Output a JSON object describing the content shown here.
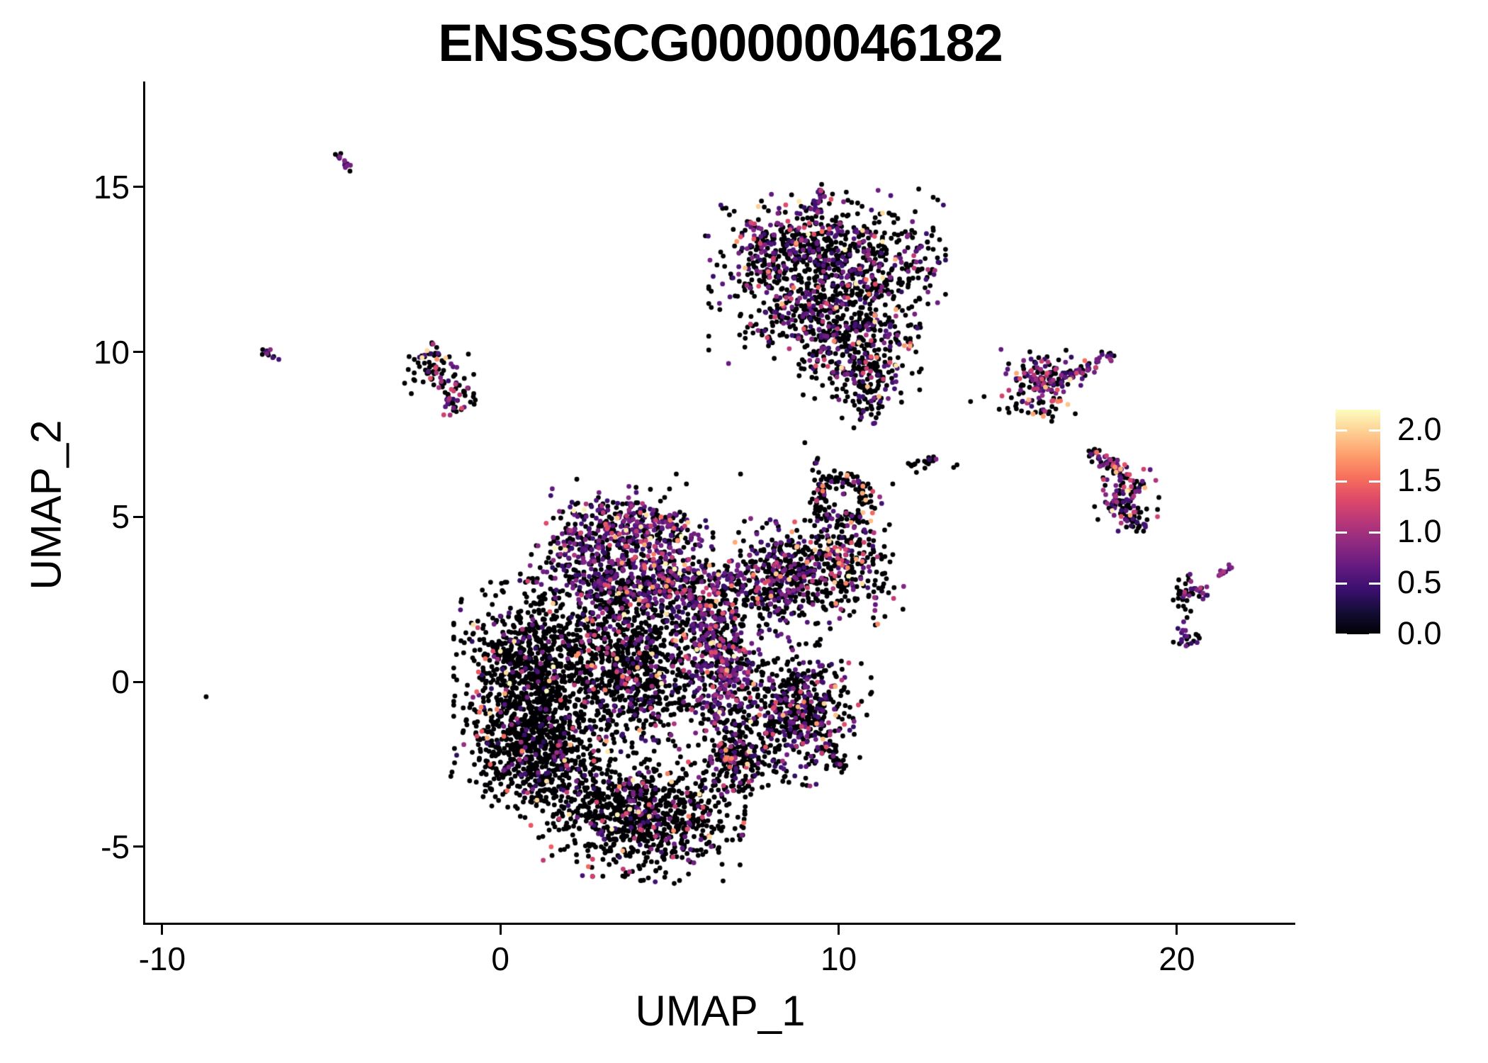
{
  "title": "ENSSSCG00000046182",
  "colors": {
    "background": "#ffffff",
    "text": "#000000",
    "axis": "#000000"
  },
  "chart_data": {
    "type": "scatter",
    "title": "ENSSSCG00000046182",
    "xlabel": "UMAP_1",
    "ylabel": "UMAP_2",
    "xlim": [
      -10.5,
      23.5
    ],
    "ylim": [
      -7.3,
      18.2
    ],
    "xticks": [
      -10,
      0,
      10,
      20
    ],
    "yticks": [
      -5,
      0,
      5,
      10,
      15
    ],
    "grid": false,
    "legend_position": "right",
    "point_radius_px": 3.4,
    "colorbar": {
      "title": "",
      "ticks": [
        0.0,
        0.5,
        1.0,
        1.5,
        2.0
      ],
      "tick_labels": [
        "0.0",
        "0.5",
        "1.0",
        "1.5",
        "2.0"
      ],
      "domain": [
        0,
        2.2
      ],
      "colormap": "magma",
      "stops": [
        "#000004",
        "#140e36",
        "#3b0f70",
        "#641a80",
        "#8c2981",
        "#b73779",
        "#de4968",
        "#f7705c",
        "#fe9f6d",
        "#fecf92",
        "#fcfdbf"
      ]
    },
    "value_bins": {
      "zero": 0,
      "low": [
        0.35,
        0.85
      ],
      "mid": [
        0.9,
        1.4
      ],
      "high": [
        1.5,
        2.2
      ]
    },
    "clusters": [
      {
        "name": "streak-topleft",
        "type": "streak",
        "x1": -4.8,
        "y1": 15.95,
        "x2": -4.42,
        "y2": 15.5,
        "jx": 0.06,
        "jy": 0.06,
        "n": 14,
        "p": [
          0.3,
          0.62,
          0.08,
          0
        ]
      },
      {
        "name": "pair-left",
        "type": "streak",
        "x1": -7.0,
        "y1": 10.05,
        "x2": -6.6,
        "y2": 9.75,
        "jx": 0.06,
        "jy": 0.06,
        "n": 11,
        "p": [
          0.55,
          0.2,
          0.25,
          0
        ]
      },
      {
        "name": "left-small-upper",
        "type": "gauss",
        "cx": -2.0,
        "cy": 9.5,
        "rx": 0.42,
        "ry": 0.42,
        "rot": -20,
        "n": 72,
        "p": [
          0.8,
          0.1,
          0.06,
          0.04
        ]
      },
      {
        "name": "left-small-lower",
        "type": "gauss",
        "cx": -1.3,
        "cy": 8.6,
        "rx": 0.28,
        "ry": 0.3,
        "rot": 0,
        "n": 42,
        "p": [
          0.55,
          0.3,
          0.13,
          0.02
        ]
      },
      {
        "name": "top-left-lobe",
        "type": "gauss",
        "cx": 8.1,
        "cy": 13.1,
        "rx": 0.85,
        "ry": 0.7,
        "rot": 0,
        "n": 270,
        "p": [
          0.62,
          0.3,
          0.06,
          0.02
        ]
      },
      {
        "name": "top-right-lobe",
        "type": "gauss",
        "cx": 10.4,
        "cy": 12.9,
        "rx": 1.15,
        "ry": 0.85,
        "rot": 0,
        "n": 470,
        "p": [
          0.72,
          0.21,
          0.05,
          0.02
        ]
      },
      {
        "name": "top-mid-band",
        "type": "gauss",
        "cx": 9.4,
        "cy": 11.3,
        "rx": 1.35,
        "ry": 0.75,
        "rot": 0,
        "n": 420,
        "p": [
          0.72,
          0.21,
          0.05,
          0.02
        ]
      },
      {
        "name": "top-lower",
        "type": "gauss",
        "cx": 10.6,
        "cy": 10.0,
        "rx": 0.8,
        "ry": 0.6,
        "rot": 10,
        "n": 250,
        "p": [
          0.73,
          0.2,
          0.05,
          0.02
        ]
      },
      {
        "name": "top-tail",
        "type": "gauss",
        "cx": 10.9,
        "cy": 8.9,
        "rx": 0.4,
        "ry": 0.5,
        "rot": 0,
        "n": 85,
        "p": [
          0.75,
          0.2,
          0.04,
          0.01
        ]
      },
      {
        "name": "top-spike",
        "type": "streak",
        "x1": 9.3,
        "y1": 14.2,
        "x2": 9.45,
        "y2": 14.85,
        "jx": 0.08,
        "jy": 0.1,
        "n": 26,
        "p": [
          0.5,
          0.4,
          0.08,
          0.02
        ]
      },
      {
        "name": "right-a-core",
        "type": "gauss",
        "cx": 16.0,
        "cy": 9.2,
        "rx": 0.5,
        "ry": 0.45,
        "rot": 0,
        "n": 135,
        "p": [
          0.52,
          0.3,
          0.13,
          0.05
        ]
      },
      {
        "name": "right-a-arm",
        "type": "streak",
        "x1": 16.4,
        "y1": 9.05,
        "x2": 18.05,
        "y2": 9.95,
        "jx": 0.12,
        "jy": 0.09,
        "n": 60,
        "p": [
          0.45,
          0.4,
          0.13,
          0.02
        ]
      },
      {
        "name": "right-a-sparse",
        "type": "gauss",
        "cx": 15.8,
        "cy": 8.3,
        "rx": 0.5,
        "ry": 0.3,
        "rot": -15,
        "n": 22,
        "p": [
          0.85,
          0.1,
          0,
          0.05
        ]
      },
      {
        "name": "right-b-top",
        "type": "streak",
        "x1": 17.55,
        "y1": 6.95,
        "x2": 18.35,
        "y2": 6.3,
        "jx": 0.12,
        "jy": 0.1,
        "n": 48,
        "p": [
          0.5,
          0.34,
          0.13,
          0.03
        ]
      },
      {
        "name": "right-b-core",
        "type": "gauss",
        "cx": 18.5,
        "cy": 5.55,
        "rx": 0.4,
        "ry": 0.5,
        "rot": 10,
        "n": 115,
        "p": [
          0.5,
          0.33,
          0.14,
          0.03
        ]
      },
      {
        "name": "right-b-tail",
        "type": "streak",
        "x1": 18.55,
        "y1": 5.0,
        "x2": 18.95,
        "y2": 4.62,
        "jx": 0.1,
        "jy": 0.08,
        "n": 14,
        "p": [
          0.55,
          0.3,
          0.15,
          0
        ]
      },
      {
        "name": "far-right-upper",
        "type": "gauss",
        "cx": 20.35,
        "cy": 2.72,
        "rx": 0.26,
        "ry": 0.24,
        "rot": 0,
        "n": 42,
        "p": [
          0.6,
          0.32,
          0.08,
          0
        ]
      },
      {
        "name": "far-right-lower",
        "type": "gauss",
        "cx": 20.28,
        "cy": 1.28,
        "rx": 0.16,
        "ry": 0.2,
        "rot": 0,
        "n": 20,
        "p": [
          0.6,
          0.4,
          0,
          0
        ]
      },
      {
        "name": "far-right-streak",
        "type": "streak",
        "x1": 21.25,
        "y1": 3.22,
        "x2": 21.65,
        "y2": 3.58,
        "jx": 0.05,
        "jy": 0.05,
        "n": 12,
        "p": [
          0.25,
          0.65,
          0.1,
          0
        ]
      },
      {
        "name": "mid-streak",
        "type": "streak",
        "x1": 12.1,
        "y1": 6.58,
        "x2": 12.8,
        "y2": 6.72,
        "jx": 0.07,
        "jy": 0.06,
        "n": 15,
        "p": [
          0.8,
          0.15,
          0.05,
          0
        ]
      },
      {
        "name": "crown",
        "type": "gauss",
        "cx": 3.9,
        "cy": 4.7,
        "rx": 1.05,
        "ry": 0.5,
        "rot": -8,
        "n": 330,
        "p": [
          0.45,
          0.42,
          0.1,
          0.03
        ]
      },
      {
        "name": "crown-left",
        "type": "gauss",
        "cx": 2.35,
        "cy": 4.1,
        "rx": 0.5,
        "ry": 0.42,
        "rot": 20,
        "n": 90,
        "p": [
          0.6,
          0.32,
          0.06,
          0.02
        ]
      },
      {
        "name": "upper-band",
        "type": "gauss",
        "cx": 4.3,
        "cy": 3.0,
        "rx": 1.55,
        "ry": 0.62,
        "rot": -4,
        "n": 700,
        "p": [
          0.56,
          0.33,
          0.08,
          0.03
        ]
      },
      {
        "name": "left-bulge",
        "type": "gauss",
        "cx": 0.9,
        "cy": 0.5,
        "rx": 0.95,
        "ry": 1.05,
        "rot": 0,
        "n": 800,
        "p": [
          0.9,
          0.06,
          0.02,
          0.02
        ]
      },
      {
        "name": "left-lower",
        "type": "gauss",
        "cx": 1.1,
        "cy": -2.1,
        "rx": 0.95,
        "ry": 0.85,
        "rot": -15,
        "n": 760,
        "p": [
          0.92,
          0.05,
          0.016,
          0.014
        ]
      },
      {
        "name": "center-core",
        "type": "gauss",
        "cx": 3.8,
        "cy": 0.4,
        "rx": 1.15,
        "ry": 1.15,
        "rot": 0,
        "n": 900,
        "p": [
          0.82,
          0.12,
          0.04,
          0.02
        ]
      },
      {
        "name": "center-column",
        "type": "gauss",
        "cx": 6.5,
        "cy": 0.7,
        "rx": 0.52,
        "ry": 1.25,
        "rot": 3,
        "n": 500,
        "p": [
          0.5,
          0.38,
          0.09,
          0.03
        ]
      },
      {
        "name": "right-arm",
        "type": "gauss",
        "cx": 8.4,
        "cy": 3.2,
        "rx": 0.72,
        "ry": 0.75,
        "rot": -20,
        "n": 440,
        "p": [
          0.68,
          0.25,
          0.05,
          0.02
        ]
      },
      {
        "name": "arm-loop",
        "type": "ring",
        "cx": 10.15,
        "cy": 5.5,
        "r0": 0.5,
        "r1": 0.95,
        "n": 130,
        "p": [
          0.8,
          0.1,
          0.04,
          0.06
        ]
      },
      {
        "name": "arm-chain",
        "type": "streak",
        "x1": 9.35,
        "y1": 6.95,
        "x2": 9.5,
        "y2": 5.6,
        "jx": 0.08,
        "jy": 0.1,
        "n": 18,
        "p": [
          0.92,
          0.08,
          0,
          0
        ]
      },
      {
        "name": "arm-lower",
        "type": "gauss",
        "cx": 10.2,
        "cy": 3.6,
        "rx": 0.65,
        "ry": 0.85,
        "rot": 15,
        "n": 260,
        "p": [
          0.72,
          0.17,
          0.06,
          0.05
        ]
      },
      {
        "name": "lower-right-lobe",
        "type": "gauss",
        "cx": 8.8,
        "cy": -0.9,
        "rx": 0.85,
        "ry": 0.9,
        "rot": -10,
        "n": 520,
        "p": [
          0.68,
          0.25,
          0.05,
          0.02
        ]
      },
      {
        "name": "bottom-lobe",
        "type": "gauss",
        "cx": 4.2,
        "cy": -4.1,
        "rx": 1.25,
        "ry": 0.8,
        "rot": -5,
        "n": 850,
        "p": [
          0.88,
          0.08,
          0.025,
          0.015
        ]
      },
      {
        "name": "bottom-right-spur",
        "type": "gauss",
        "cx": 6.9,
        "cy": -2.5,
        "rx": 0.5,
        "ry": 0.6,
        "rot": -30,
        "n": 200,
        "p": [
          0.8,
          0.15,
          0.03,
          0.02
        ]
      },
      {
        "name": "down-tip",
        "type": "streak",
        "x1": 9.7,
        "y1": -1.9,
        "x2": 10.15,
        "y2": -2.6,
        "jx": 0.12,
        "jy": 0.12,
        "n": 30,
        "p": [
          0.8,
          0.15,
          0.05,
          0
        ]
      }
    ],
    "extra_points": [
      [
        -8.7,
        -0.45,
        0
      ],
      [
        -1.62,
        9.82,
        2.0
      ],
      [
        -1.88,
        9.78,
        1.7
      ],
      [
        -1.9,
        9.55,
        1.05
      ],
      [
        -2.07,
        9.2,
        1.35
      ],
      [
        -1.82,
        8.92,
        1.0
      ],
      [
        15.75,
        8.12,
        1.8
      ],
      [
        16.05,
        8.05,
        1.75
      ],
      [
        10.25,
        6.27,
        1.8
      ],
      [
        10.7,
        5.72,
        1.8
      ],
      [
        11.0,
        5.12,
        1.5
      ],
      [
        10.95,
        4.88,
        1.9
      ],
      [
        8.7,
        4.85,
        1.4
      ],
      [
        8.62,
        4.55,
        1.75
      ],
      [
        12.88,
        6.75,
        0.8
      ],
      [
        18.62,
        5.05,
        1.8
      ],
      [
        20.7,
        2.85,
        1.1
      ],
      [
        4.75,
        5.0,
        1.5
      ],
      [
        5.02,
        4.9,
        1.6
      ],
      [
        5.45,
        4.72,
        1.2
      ],
      [
        -0.65,
        0.3,
        1.4
      ],
      [
        -0.7,
        -0.3,
        1.45
      ],
      [
        -0.62,
        -0.92,
        1.5
      ],
      [
        -0.55,
        -1.5,
        1.4
      ],
      [
        -0.3,
        -2.5,
        1.45
      ],
      [
        0.2,
        -3.3,
        1.5
      ],
      [
        1.5,
        -5.0,
        1.45
      ],
      [
        2.6,
        -5.6,
        1.5
      ],
      [
        0.9,
        -4.35,
        1.4
      ],
      [
        2.7,
        0.5,
        1.8
      ],
      [
        8.0,
        2.6,
        1.8
      ],
      [
        11.6,
        6.0,
        0
      ],
      [
        13.4,
        6.5,
        0
      ],
      [
        13.5,
        6.58,
        0
      ],
      [
        13.9,
        8.5,
        0
      ],
      [
        14.3,
        8.65,
        0
      ],
      [
        12.3,
        6.35,
        0
      ],
      [
        10.1,
        8.0,
        0
      ],
      [
        10.45,
        7.7,
        0
      ],
      [
        9.0,
        7.25,
        0
      ],
      [
        5.2,
        6.3,
        0
      ],
      [
        5.5,
        6.0,
        0
      ],
      [
        5.0,
        5.85,
        0
      ],
      [
        7.1,
        6.3,
        0
      ],
      [
        16.3,
        7.9,
        0
      ],
      [
        20.25,
        2.2,
        0
      ],
      [
        20.3,
        1.95,
        0
      ],
      [
        20.2,
        1.82,
        0.6
      ],
      [
        12.55,
        6.48,
        0
      ]
    ]
  }
}
